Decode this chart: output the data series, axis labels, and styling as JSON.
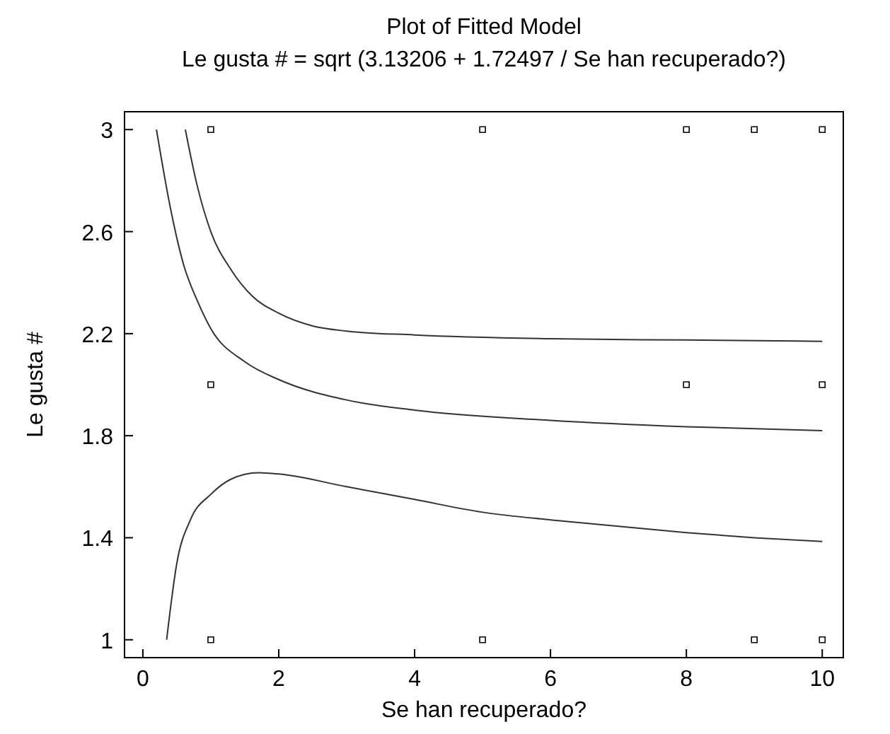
{
  "chart_data": {
    "type": "line",
    "title": "Plot of Fitted Model",
    "subtitle": "Le gusta # = sqrt (3.13206 + 1.72497 / Se han recuperado?)",
    "xlabel": "Se han recuperado?",
    "ylabel": "Le gusta #",
    "xlim": [
      -0.27,
      10.31
    ],
    "xticks": [
      0,
      2,
      4,
      6,
      8,
      10
    ],
    "ylim": [
      0.93,
      3.07
    ],
    "yticks": [
      1,
      1.4,
      1.8,
      2.2,
      2.6,
      3
    ],
    "grid": false,
    "line_style": "solid",
    "series": [
      {
        "type": "scatter",
        "marker": "square",
        "color": "#000000",
        "x": [
          1,
          5,
          8,
          9,
          10,
          1,
          8,
          10,
          1,
          5,
          9,
          10
        ],
        "values": [
          3,
          3,
          3,
          3,
          3,
          2,
          2,
          2,
          1,
          1,
          1,
          1
        ]
      },
      {
        "marker": "none",
        "color": "#333333",
        "x": [
          0.2,
          0.4,
          0.6,
          0.8,
          1,
          1.5,
          2,
          3,
          4,
          6,
          8,
          10
        ],
        "values": [
          3.0,
          2.7,
          2.47,
          2.33,
          2.22,
          2.09,
          2.02,
          1.94,
          1.9,
          1.86,
          1.835,
          1.82
        ]
      },
      {
        "marker": "none",
        "color": "#333333",
        "x": [
          0.625,
          0.8,
          1,
          1.3,
          1.6,
          2,
          2.5,
          3,
          4,
          6,
          8,
          10
        ],
        "values": [
          3.0,
          2.78,
          2.6,
          2.45,
          2.35,
          2.28,
          2.23,
          2.21,
          2.195,
          2.18,
          2.175,
          2.17
        ]
      },
      {
        "marker": "none",
        "color": "#333333",
        "x": [
          0.35,
          0.5,
          0.7,
          1,
          1.3,
          1.7,
          2,
          3,
          4,
          5,
          6,
          7,
          8,
          9,
          10
        ],
        "values": [
          1.0,
          1.3,
          1.47,
          1.57,
          1.63,
          1.655,
          1.65,
          1.6,
          1.55,
          1.5,
          1.47,
          1.445,
          1.42,
          1.4,
          1.385
        ]
      }
    ]
  }
}
